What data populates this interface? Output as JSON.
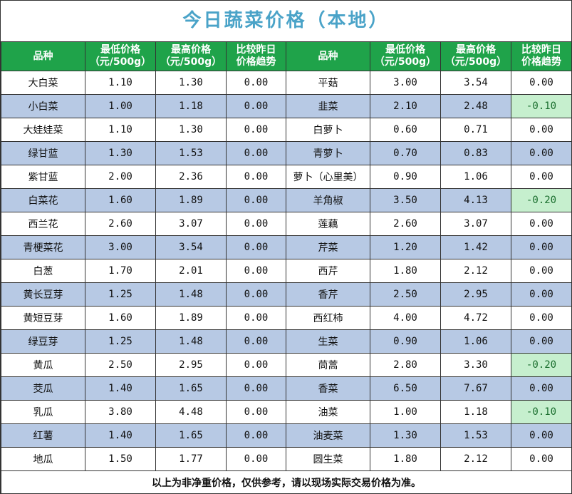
{
  "title": "今日蔬菜价格（本地）",
  "headers": {
    "name": "品种",
    "min_l1": "最低价格",
    "min_l2": "（元/500g）",
    "max_l1": "最高价格",
    "max_l2": "（元/500g）",
    "cmp_l1": "比较昨日",
    "cmp_l2": "价格趋势"
  },
  "rows": [
    {
      "left": [
        "大白菜",
        "1.10",
        "1.30",
        "0.00"
      ],
      "right": [
        "平菇",
        "3.00",
        "3.54",
        "0.00"
      ]
    },
    {
      "left": [
        "小白菜",
        "1.00",
        "1.18",
        "0.00"
      ],
      "right": [
        "韭菜",
        "2.10",
        "2.48",
        "-0.10"
      ]
    },
    {
      "left": [
        "大娃娃菜",
        "1.10",
        "1.30",
        "0.00"
      ],
      "right": [
        "白萝卜",
        "0.60",
        "0.71",
        "0.00"
      ]
    },
    {
      "left": [
        "绿甘蓝",
        "1.30",
        "1.53",
        "0.00"
      ],
      "right": [
        "青萝卜",
        "0.70",
        "0.83",
        "0.00"
      ]
    },
    {
      "left": [
        "紫甘蓝",
        "2.00",
        "2.36",
        "0.00"
      ],
      "right": [
        "萝卜（心里美）",
        "0.90",
        "1.06",
        "0.00"
      ]
    },
    {
      "left": [
        "白菜花",
        "1.60",
        "1.89",
        "0.00"
      ],
      "right": [
        "羊角椒",
        "3.50",
        "4.13",
        "-0.20"
      ]
    },
    {
      "left": [
        "西兰花",
        "2.60",
        "3.07",
        "0.00"
      ],
      "right": [
        "莲藕",
        "2.60",
        "3.07",
        "0.00"
      ]
    },
    {
      "left": [
        "青梗菜花",
        "3.00",
        "3.54",
        "0.00"
      ],
      "right": [
        "芹菜",
        "1.20",
        "1.42",
        "0.00"
      ]
    },
    {
      "left": [
        "白葱",
        "1.70",
        "2.01",
        "0.00"
      ],
      "right": [
        "西芹",
        "1.80",
        "2.12",
        "0.00"
      ]
    },
    {
      "left": [
        "黄长豆芽",
        "1.25",
        "1.48",
        "0.00"
      ],
      "right": [
        "香芹",
        "2.50",
        "2.95",
        "0.00"
      ]
    },
    {
      "left": [
        "黄短豆芽",
        "1.60",
        "1.89",
        "0.00"
      ],
      "right": [
        "西红柿",
        "4.00",
        "4.72",
        "0.00"
      ]
    },
    {
      "left": [
        "绿豆芽",
        "1.25",
        "1.48",
        "0.00"
      ],
      "right": [
        "生菜",
        "0.90",
        "1.06",
        "0.00"
      ]
    },
    {
      "left": [
        "黄瓜",
        "2.50",
        "2.95",
        "0.00"
      ],
      "right": [
        "茼蒿",
        "2.80",
        "3.30",
        "-0.20"
      ]
    },
    {
      "left": [
        "茭瓜",
        "1.40",
        "1.65",
        "0.00"
      ],
      "right": [
        "香菜",
        "6.50",
        "7.67",
        "0.00"
      ]
    },
    {
      "left": [
        "乳瓜",
        "3.80",
        "4.48",
        "0.00"
      ],
      "right": [
        "油菜",
        "1.00",
        "1.18",
        "-0.10"
      ]
    },
    {
      "left": [
        "红薯",
        "1.40",
        "1.65",
        "0.00"
      ],
      "right": [
        "油麦菜",
        "1.30",
        "1.53",
        "0.00"
      ]
    },
    {
      "left": [
        "地瓜",
        "1.50",
        "1.77",
        "0.00"
      ],
      "right": [
        "圆生菜",
        "1.80",
        "2.12",
        "0.00"
      ]
    }
  ],
  "footer": "以上为非净重价格，仅供参考，请以现场实际交易价格为准。",
  "colors": {
    "title": "#4aa3c8",
    "header_bg": "#1fa34a",
    "alt_row_bg": "#b7c9e4",
    "negative_bg": "#c6efce"
  }
}
